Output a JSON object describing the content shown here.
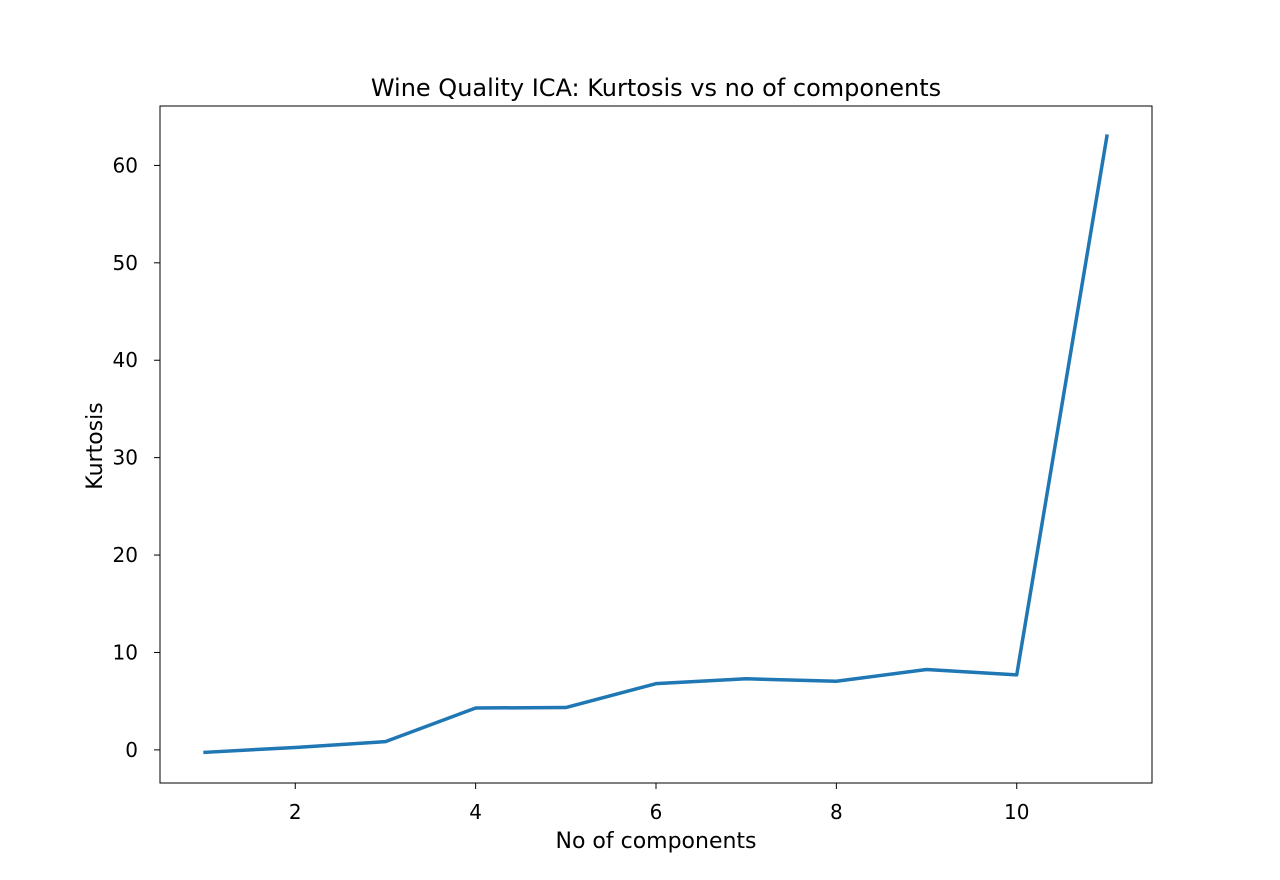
{
  "chart_data": {
    "type": "line",
    "title": "Wine Quality ICA: Kurtosis vs no of components",
    "xlabel": "No of components",
    "ylabel": "Kurtosis",
    "xlim": [
      0.5,
      11.5
    ],
    "ylim": [
      -3.4,
      66.1
    ],
    "xticks": [
      2,
      4,
      6,
      8,
      10
    ],
    "yticks": [
      0,
      10,
      20,
      30,
      40,
      50,
      60
    ],
    "grid": false,
    "series": [
      {
        "color": "#1f77b4",
        "x": [
          1,
          2,
          3,
          4,
          5,
          6,
          7,
          8,
          9,
          10,
          11
        ],
        "y": [
          -0.25,
          0.25,
          0.85,
          4.3,
          4.35,
          6.8,
          7.3,
          7.05,
          8.25,
          7.7,
          63.0
        ]
      }
    ]
  }
}
